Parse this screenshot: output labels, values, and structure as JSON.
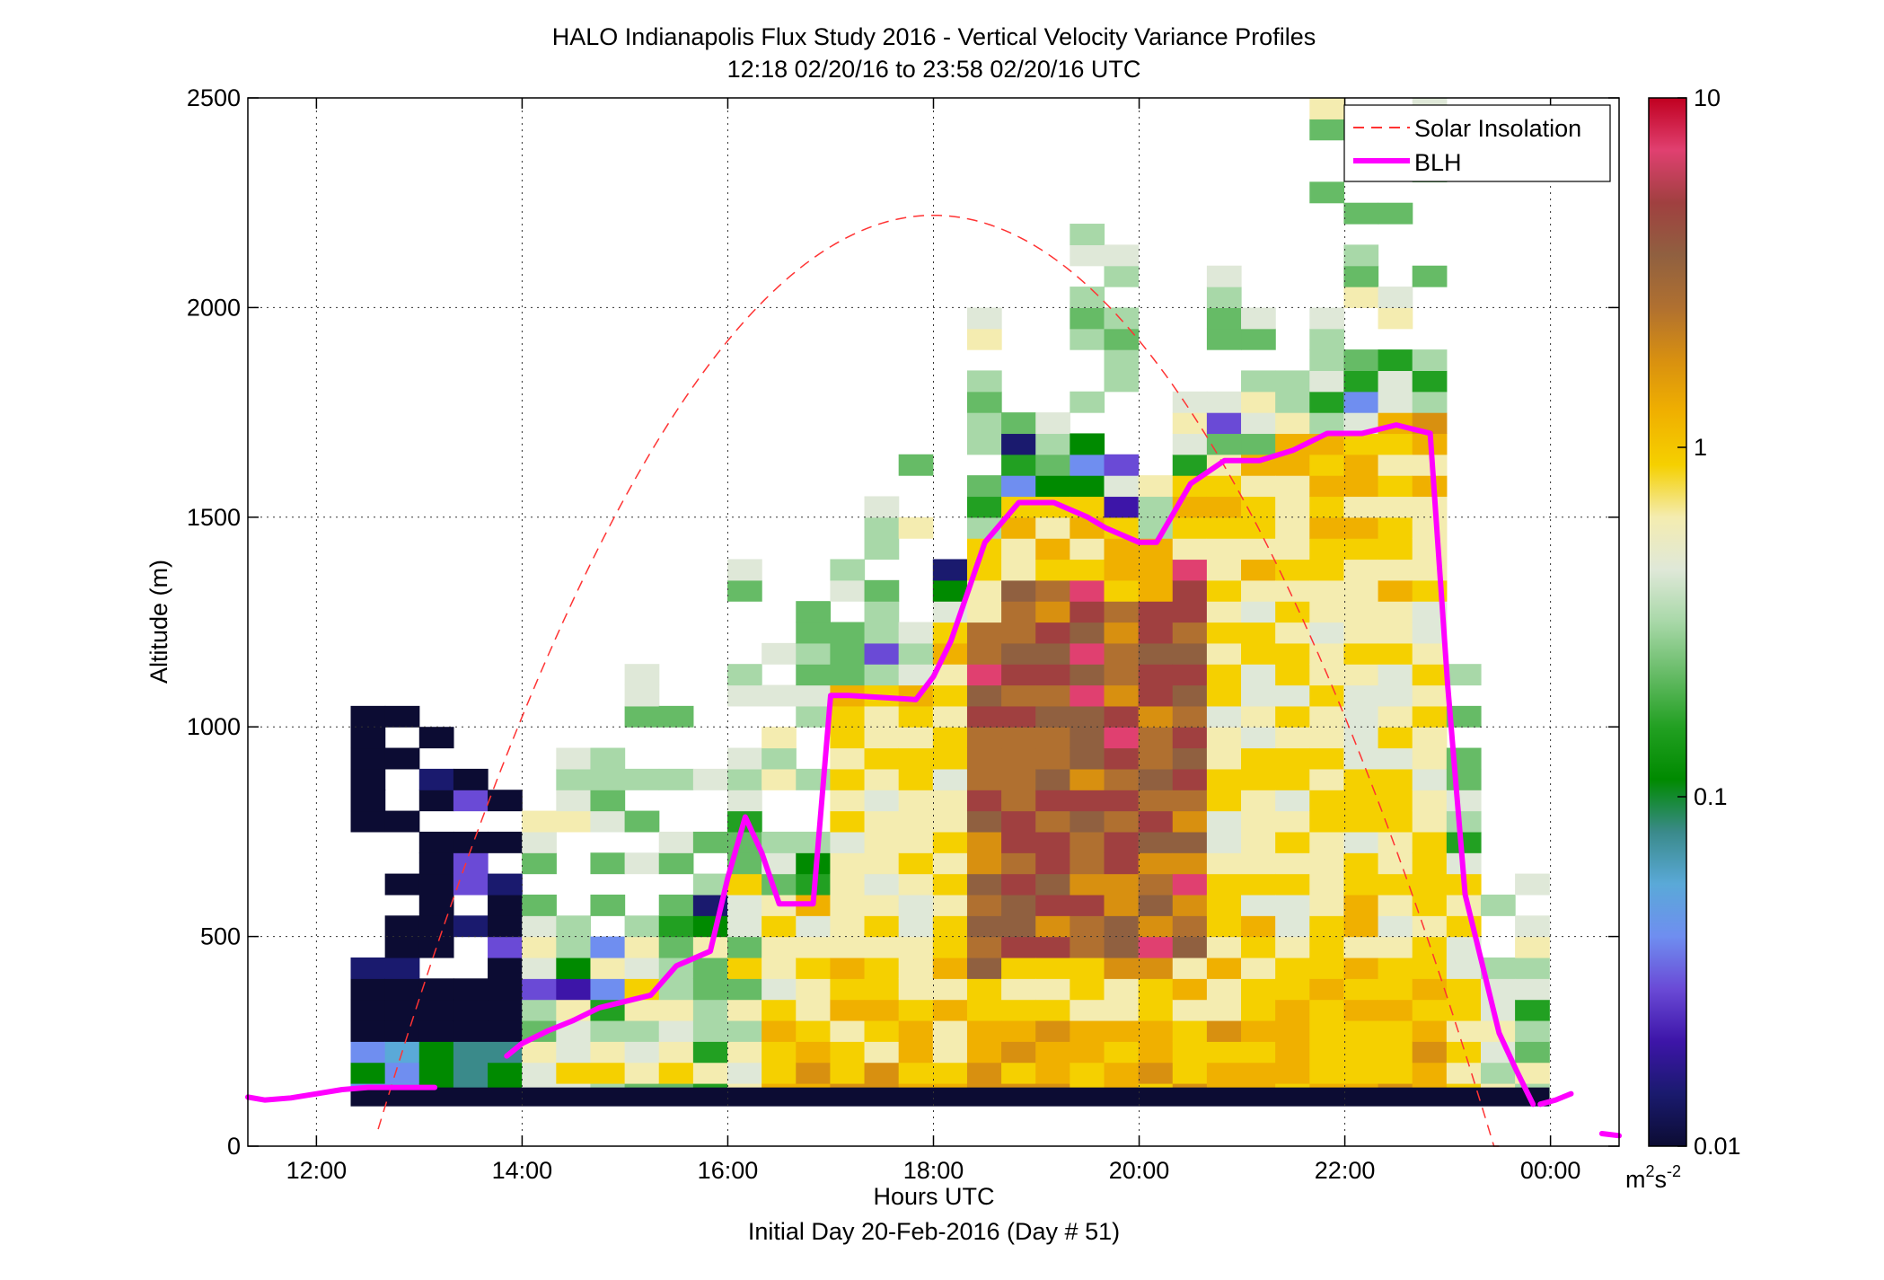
{
  "title": "HALO Indianapolis Flux Study 2016 - Vertical Velocity Variance Profiles",
  "subtitle": "12:18 02/20/16 to 23:58 02/20/16  UTC",
  "footer": "Initial Day 20-Feb-2016 (Day # 51)",
  "chart_data": {
    "type": "heatmap",
    "xlabel": "Hours UTC",
    "ylabel": "Altitude (m)",
    "xlim_hours": [
      11.333,
      24.667
    ],
    "ylim": [
      0,
      2500
    ],
    "x_ticks": [
      {
        "hour": 12,
        "label": "12:00"
      },
      {
        "hour": 14,
        "label": "14:00"
      },
      {
        "hour": 16,
        "label": "16:00"
      },
      {
        "hour": 18,
        "label": "18:00"
      },
      {
        "hour": 20,
        "label": "20:00"
      },
      {
        "hour": 22,
        "label": "22:00"
      },
      {
        "hour": 24,
        "label": "00:00"
      }
    ],
    "y_ticks": [
      {
        "value": 0,
        "label": "0"
      },
      {
        "value": 500,
        "label": "500"
      },
      {
        "value": 1000,
        "label": "1000"
      },
      {
        "value": 1500,
        "label": "1500"
      },
      {
        "value": 2000,
        "label": "2000"
      },
      {
        "value": 2500,
        "label": "2500"
      }
    ],
    "grid": true,
    "colorbar": {
      "scale": "log",
      "range": [
        0.01,
        10
      ],
      "ticks": [
        {
          "value": 0.01,
          "label": "0.01"
        },
        {
          "value": 0.1,
          "label": "0.1"
        },
        {
          "value": 1,
          "label": "1"
        },
        {
          "value": 10,
          "label": "10"
        }
      ],
      "unit_label": "m",
      "unit_sup1": "2",
      "unit_mid": "s",
      "unit_sup2": "-2"
    },
    "legend": {
      "placement": "top-right",
      "entries": [
        {
          "label": "Solar Insolation",
          "color": "#ff3333",
          "style": "dashed"
        },
        {
          "label": "BLH",
          "color": "#ff00ff",
          "style": "solid"
        }
      ]
    },
    "series": [
      {
        "name": "BLH",
        "color": "#ff00ff",
        "segments": [
          {
            "hours": [
              11.333,
              11.5,
              11.75,
              12.0,
              12.25,
              12.5,
              12.75,
              13.0,
              13.15
            ],
            "altitude": [
              117,
              110,
              115,
              125,
              135,
              140,
              140,
              140,
              140
            ]
          },
          {
            "hours": [
              13.85,
              14.0,
              14.25,
              14.5,
              14.75,
              15.0,
              15.25,
              15.5,
              15.83,
              16.0,
              16.17,
              16.33,
              16.5,
              16.83,
              17.0,
              17.17,
              17.5,
              17.83,
              18.0,
              18.17,
              18.5,
              18.83,
              19.0,
              19.17,
              19.5,
              19.67,
              20.0,
              20.17,
              20.5,
              20.83,
              21.0,
              21.17,
              21.5,
              21.83,
              22.0,
              22.17,
              22.5,
              22.83,
              23.0,
              23.17,
              23.5,
              23.67,
              23.83
            ],
            "altitude": [
              215,
              245,
              275,
              300,
              330,
              345,
              360,
              430,
              465,
              640,
              785,
              700,
              578,
              578,
              1075,
              1075,
              1070,
              1065,
              1120,
              1205,
              1440,
              1535,
              1535,
              1535,
              1500,
              1475,
              1440,
              1440,
              1580,
              1635,
              1635,
              1635,
              1660,
              1700,
              1700,
              1700,
              1720,
              1700,
              1100,
              600,
              270,
              180,
              100
            ]
          },
          {
            "hours": [
              23.9,
              24.05,
              24.2
            ],
            "altitude": [
              100,
              110,
              125
            ]
          },
          {
            "hours": [
              24.5,
              24.667
            ],
            "altitude": [
              30,
              25
            ]
          }
        ]
      },
      {
        "name": "Solar Insolation",
        "color": "#ff3333",
        "shape": "parabola",
        "peak_hour": 18.0,
        "peak_altitude": 2220,
        "zero_hours": [
          12.6,
          23.5
        ]
      }
    ]
  },
  "heatmap": {
    "x0_hour": 12.333,
    "dx_hours": 0.333,
    "y0_altitude": 100,
    "dy_altitude": 50,
    "colormap_stops": [
      "#0c0c33",
      "#1a1a6e",
      "#3d15a8",
      "#6a4ad6",
      "#6f8ef0",
      "#5aa9d8",
      "#3a8a8a",
      "#008a00",
      "#22a022",
      "#66bb66",
      "#a8d8a8",
      "#dfe8d8",
      "#f4ecb0",
      "#f5d000",
      "#f0b000",
      "#d89010",
      "#b07030",
      "#906040",
      "#a04040",
      "#e04070",
      "#c00020"
    ],
    "nodata_value": -1,
    "levels_note": "cell values are colormap indices 0-20 (log-spaced 0.01 to 10)"
  }
}
